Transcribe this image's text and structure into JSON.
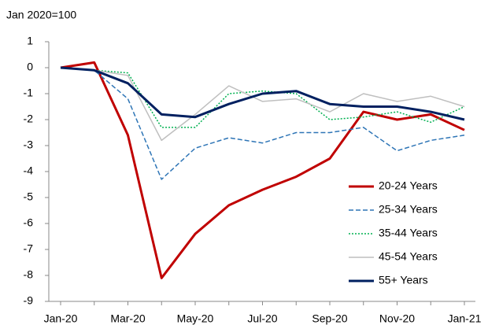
{
  "chart_data": {
    "type": "line",
    "y_axis_label": "Jan 2020=100",
    "categories": [
      "Jan-20",
      null,
      "Mar-20",
      null,
      "May-20",
      null,
      "Jul-20",
      null,
      "Sep-20",
      null,
      "Nov-20",
      null,
      "Jan-21"
    ],
    "ylim": [
      -9,
      1
    ],
    "yticks": [
      1,
      0,
      -1,
      -2,
      -3,
      -4,
      -5,
      -6,
      -7,
      -8,
      -9
    ],
    "legend": "lower right",
    "series": [
      {
        "name": "20-24 Years",
        "color": "#c00000",
        "style": "solid",
        "values": [
          0,
          0.2,
          -2.6,
          -8.1,
          -6.4,
          -5.3,
          -4.7,
          -4.2,
          -3.5,
          -1.7,
          -2.0,
          -1.8,
          -2.4
        ]
      },
      {
        "name": "25-34 Years",
        "color": "#2e75b6",
        "style": "dashed",
        "values": [
          0,
          -0.1,
          -1.2,
          -4.3,
          -3.1,
          -2.7,
          -2.9,
          -2.5,
          -2.5,
          -2.3,
          -3.2,
          -2.8,
          -2.6
        ]
      },
      {
        "name": "35-44 Years",
        "color": "#00b050",
        "style": "dotted",
        "values": [
          0,
          -0.1,
          -0.2,
          -2.3,
          -2.3,
          -1.0,
          -0.9,
          -1.0,
          -2.0,
          -1.9,
          -1.7,
          -2.1,
          -1.5
        ]
      },
      {
        "name": "45-54 Years",
        "color": "#bfbfbf",
        "style": "solid",
        "values": [
          0,
          -0.1,
          -0.3,
          -2.8,
          -1.8,
          -0.7,
          -1.3,
          -1.2,
          -1.7,
          -1.0,
          -1.3,
          -1.1,
          -1.5
        ]
      },
      {
        "name": "55+ Years",
        "color": "#002060",
        "style": "solid",
        "values": [
          0,
          -0.1,
          -0.6,
          -1.8,
          -1.9,
          -1.4,
          -1.0,
          -0.9,
          -1.4,
          -1.5,
          -1.5,
          -1.7,
          -2.0
        ]
      }
    ]
  }
}
